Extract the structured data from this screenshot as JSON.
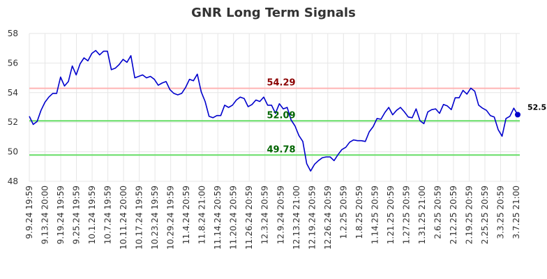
{
  "chart_data": {
    "type": "line",
    "title": "GNR Long Term Signals",
    "xlabel": "",
    "ylabel": "",
    "ylim": [
      48,
      58
    ],
    "yticks": [
      "48",
      "50",
      "52",
      "54",
      "56",
      "58"
    ],
    "grid": true,
    "x_tick_labels": [
      "9.9.24 19:59",
      "9.13.24 20:00",
      "9.19.24 19:59",
      "9.25.24 19:59",
      "10.1.24 19:59",
      "10.7.24 19:59",
      "10.11.24 20:00",
      "10.17.24 19:59",
      "10.23.24 19:59",
      "10.29.24 19:59",
      "11.4.24 20:59",
      "11.8.24 21:00",
      "11.14.24 20:59",
      "11.20.24 20:59",
      "11.26.24 20:59",
      "12.3.24 20:59",
      "12.9.24 20:59",
      "12.13.24 21:00",
      "12.19.24 20:59",
      "12.26.24 20:59",
      "1.2.25 20:59",
      "1.8.25 20:59",
      "1.14.25 20:59",
      "1.21.25 20:59",
      "1.27.25 20:59",
      "1.31.25 21:00",
      "2.6.25 20:59",
      "2.12.25 20:59",
      "2.19.25 20:59",
      "2.25.25 20:59",
      "3.3.25 20:59",
      "3.7.25 21:00"
    ],
    "series": [
      {
        "color": "#0000cc",
        "values": [
          52.4,
          51.85,
          52.05,
          52.8,
          53.35,
          53.7,
          53.95,
          53.95,
          55.05,
          54.45,
          54.75,
          55.8,
          55.2,
          55.95,
          56.35,
          56.15,
          56.65,
          56.85,
          56.55,
          56.8,
          56.8,
          55.55,
          55.65,
          55.9,
          56.25,
          56.05,
          56.5,
          55.0,
          55.1,
          55.2,
          55.0,
          55.1,
          54.9,
          54.5,
          54.65,
          54.75,
          54.2,
          53.95,
          53.85,
          53.95,
          54.35,
          54.9,
          54.8,
          55.25,
          54.05,
          53.4,
          52.4,
          52.3,
          52.45,
          52.45,
          53.15,
          53.0,
          53.15,
          53.5,
          53.7,
          53.6,
          53.05,
          53.2,
          53.5,
          53.4,
          53.7,
          53.15,
          53.15,
          52.6,
          53.25,
          52.9,
          53.0,
          52.15,
          51.75,
          51.1,
          50.7,
          49.2,
          48.7,
          49.15,
          49.4,
          49.6,
          49.65,
          49.65,
          49.4,
          49.8,
          50.15,
          50.3,
          50.65,
          50.8,
          50.75,
          50.75,
          50.7,
          51.35,
          51.7,
          52.25,
          52.2,
          52.65,
          53.0,
          52.5,
          52.8,
          53.0,
          52.7,
          52.35,
          52.3,
          52.9,
          52.1,
          51.9,
          52.7,
          52.85,
          52.9,
          52.6,
          53.2,
          53.1,
          52.85,
          53.65,
          53.65,
          54.15,
          53.9,
          54.3,
          54.1,
          53.15,
          52.95,
          52.8,
          52.45,
          52.35,
          51.5,
          51.05,
          52.25,
          52.4,
          52.95,
          52.51
        ]
      }
    ],
    "last_value_label": "52.51",
    "reference_lines": [
      {
        "value": 54.29,
        "label": "54.29",
        "line_color": "#ffb3b3",
        "label_color": "#8b0000"
      },
      {
        "value": 52.09,
        "label": "52.09",
        "line_color": "#66dd66",
        "label_color": "#006400"
      },
      {
        "value": 49.78,
        "label": "49.78",
        "line_color": "#66dd66",
        "label_color": "#006400"
      }
    ]
  }
}
